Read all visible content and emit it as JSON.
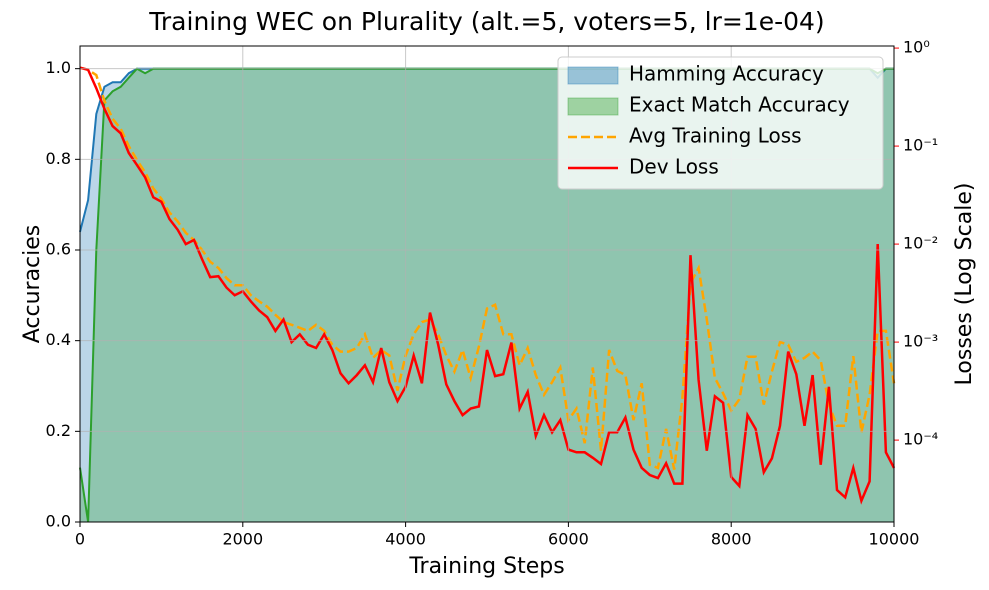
{
  "chart_data": {
    "type": "line",
    "title": "Training WEC on Plurality (alt.=5, voters=5, lr=1e-04)",
    "x_label": "Training Steps",
    "y_label": "Accuracies",
    "y2_label": "Losses (Log Scale)",
    "x": [
      0,
      100,
      200,
      300,
      400,
      500,
      600,
      700,
      800,
      900,
      1000,
      1100,
      1200,
      1300,
      1400,
      1500,
      1600,
      1700,
      1800,
      1900,
      2000,
      2100,
      2200,
      2300,
      2400,
      2500,
      2600,
      2700,
      2800,
      2900,
      3000,
      3100,
      3200,
      3300,
      3400,
      3500,
      3600,
      3700,
      3800,
      3900,
      4000,
      4100,
      4200,
      4300,
      4400,
      4500,
      4600,
      4700,
      4800,
      4900,
      5000,
      5100,
      5200,
      5300,
      5400,
      5500,
      5600,
      5700,
      5800,
      5900,
      6000,
      6100,
      6200,
      6300,
      6400,
      6500,
      6600,
      6700,
      6800,
      6900,
      7000,
      7100,
      7200,
      7300,
      7400,
      7500,
      7600,
      7700,
      7800,
      7900,
      8000,
      8100,
      8200,
      8300,
      8400,
      8500,
      8600,
      8700,
      8800,
      8900,
      9000,
      9100,
      9200,
      9300,
      9400,
      9500,
      9600,
      9700,
      9800,
      9900,
      10000
    ],
    "series": [
      {
        "name": "Hamming Accuracy",
        "color": "#1f77b4",
        "style": "area",
        "alpha": 0.3,
        "values": [
          0.64,
          0.71,
          0.9,
          0.96,
          0.97,
          0.97,
          0.99,
          1,
          1,
          1,
          1,
          1,
          1,
          1,
          1,
          1,
          1,
          1,
          1,
          1,
          1,
          1,
          1,
          1,
          1,
          1,
          1,
          1,
          1,
          1,
          1,
          1,
          1,
          1,
          1,
          1,
          1,
          1,
          1,
          1,
          1,
          1,
          1,
          1,
          1,
          1,
          1,
          1,
          1,
          1,
          1,
          1,
          1,
          1,
          1,
          1,
          1,
          1,
          1,
          1,
          1,
          1,
          1,
          1,
          1,
          1,
          1,
          1,
          1,
          1,
          1,
          1,
          1,
          1,
          1,
          1,
          1,
          1,
          1,
          1,
          1,
          1,
          1,
          1,
          1,
          1,
          1,
          1,
          1,
          1,
          1,
          1,
          1,
          1,
          1,
          1,
          1,
          1,
          0.98,
          1,
          1
        ]
      },
      {
        "name": "Exact Match Accuracy",
        "color": "#2ca02c",
        "style": "area",
        "alpha": 0.3,
        "values": [
          0.12,
          0,
          0.6,
          0.93,
          0.95,
          0.96,
          0.98,
          1,
          0.99,
          1,
          1,
          1,
          1,
          1,
          1,
          1,
          1,
          1,
          1,
          1,
          1,
          1,
          1,
          1,
          1,
          1,
          1,
          1,
          1,
          1,
          1,
          1,
          1,
          1,
          1,
          1,
          1,
          1,
          1,
          1,
          1,
          1,
          1,
          1,
          1,
          1,
          1,
          1,
          1,
          1,
          1,
          1,
          1,
          1,
          1,
          1,
          1,
          1,
          1,
          1,
          1,
          1,
          1,
          1,
          1,
          1,
          1,
          1,
          1,
          1,
          1,
          1,
          1,
          1,
          1,
          1,
          1,
          1,
          1,
          1,
          1,
          1,
          1,
          1,
          1,
          1,
          1,
          1,
          1,
          1,
          1,
          1,
          1,
          1,
          1,
          1,
          1,
          1,
          0.99,
          1,
          1
        ]
      },
      {
        "name": "Avg Training Loss",
        "color": "#ffa500",
        "style": "dashed",
        "axis": "y2",
        "values": [
          0.63,
          0.6,
          0.53,
          0.29,
          0.19,
          0.15,
          0.1,
          0.072,
          0.054,
          0.037,
          0.029,
          0.021,
          0.017,
          0.013,
          0.011,
          0.0087,
          0.0066,
          0.0057,
          0.0045,
          0.0038,
          0.0038,
          0.003,
          0.0026,
          0.0023,
          0.0019,
          0.0016,
          0.0015,
          0.0014,
          0.0013,
          0.0015,
          0.0013,
          0.00094,
          0.0008,
          0.0008,
          0.00087,
          0.0012,
          0.00069,
          0.00083,
          0.00073,
          0.00032,
          0.00073,
          0.0012,
          0.0016,
          0.0017,
          0.0012,
          0.00073,
          0.0005,
          0.00083,
          0.00043,
          0.0009,
          0.0022,
          0.0024,
          0.0012,
          0.0012,
          0.00058,
          0.00087,
          0.00046,
          0.00029,
          0.00039,
          0.00055,
          0.00016,
          0.00021,
          9.3e-05,
          0.00055,
          7.8e-05,
          0.00083,
          0.00051,
          0.00046,
          0.00016,
          0.00038,
          5.6e-05,
          5.2e-05,
          0.00013,
          5e-05,
          0.00027,
          0.004,
          0.0057,
          0.0017,
          0.00043,
          0.0003,
          0.0002,
          0.00026,
          0.00071,
          0.00071,
          0.00023,
          0.0005,
          0.001,
          0.00094,
          0.00063,
          0.00069,
          0.0008,
          0.00065,
          0.00023,
          0.00014,
          0.00014,
          0.00072,
          0.00012,
          0.00029,
          0.0013,
          0.0013,
          0.00038
        ]
      },
      {
        "name": "Dev Loss",
        "color": "#ff0000",
        "style": "solid",
        "axis": "y2",
        "values": [
          0.63,
          0.6,
          0.39,
          0.24,
          0.16,
          0.135,
          0.085,
          0.064,
          0.048,
          0.03,
          0.027,
          0.018,
          0.014,
          0.01,
          0.011,
          0.007,
          0.0046,
          0.0047,
          0.0036,
          0.003,
          0.0033,
          0.0026,
          0.0021,
          0.0018,
          0.0013,
          0.0017,
          0.001,
          0.0012,
          0.00094,
          0.00087,
          0.0012,
          0.00083,
          0.00048,
          0.00038,
          0.00046,
          0.00058,
          0.00039,
          0.00087,
          0.00039,
          0.00025,
          0.00035,
          0.00073,
          0.00038,
          0.002,
          0.00094,
          0.00037,
          0.00025,
          0.00018,
          0.00021,
          0.00022,
          0.00083,
          0.00045,
          0.00047,
          0.00099,
          0.00021,
          0.00031,
          0.00011,
          0.00018,
          0.00012,
          0.00016,
          8e-05,
          7.5e-05,
          7.5e-05,
          6.6e-05,
          5.7e-05,
          0.00012,
          0.00012,
          0.00017,
          8e-05,
          5.2e-05,
          4.4e-05,
          4.1e-05,
          5.8e-05,
          3.6e-05,
          3.6e-05,
          0.0077,
          0.00041,
          7.8e-05,
          0.00028,
          0.00024,
          4.2e-05,
          3.4e-05,
          0.00018,
          0.00013,
          4.7e-05,
          6.5e-05,
          0.00014,
          0.0008,
          0.00047,
          0.00014,
          0.00046,
          5.6e-05,
          0.00035,
          3.1e-05,
          2.6e-05,
          5.2e-05,
          2.4e-05,
          3.8e-05,
          0.01,
          7.5e-05,
          5.2e-05
        ]
      }
    ],
    "xlim": [
      0,
      10000
    ],
    "xticks": [
      0,
      2000,
      4000,
      6000,
      8000,
      10000
    ],
    "ylim": [
      0,
      1.05
    ],
    "yticks": [
      {
        "value": 0,
        "label": "0.0"
      },
      0.2,
      0.4,
      0.6,
      0.8,
      {
        "value": 1,
        "label": "1.0"
      }
    ],
    "y2lim": [
      1.46e-05,
      1.05
    ],
    "y2_scale": "log",
    "y2_color": "#ff0000",
    "y2ticks": [
      {
        "value": 1,
        "label": "10⁰"
      },
      {
        "value": 0.1,
        "label": "10⁻¹"
      },
      {
        "value": 0.01,
        "label": "10⁻²"
      },
      {
        "value": 0.001,
        "label": "10⁻³"
      },
      {
        "value": 0.0001,
        "label": "10⁻⁴"
      }
    ],
    "grid": true,
    "legend": "upper right"
  }
}
